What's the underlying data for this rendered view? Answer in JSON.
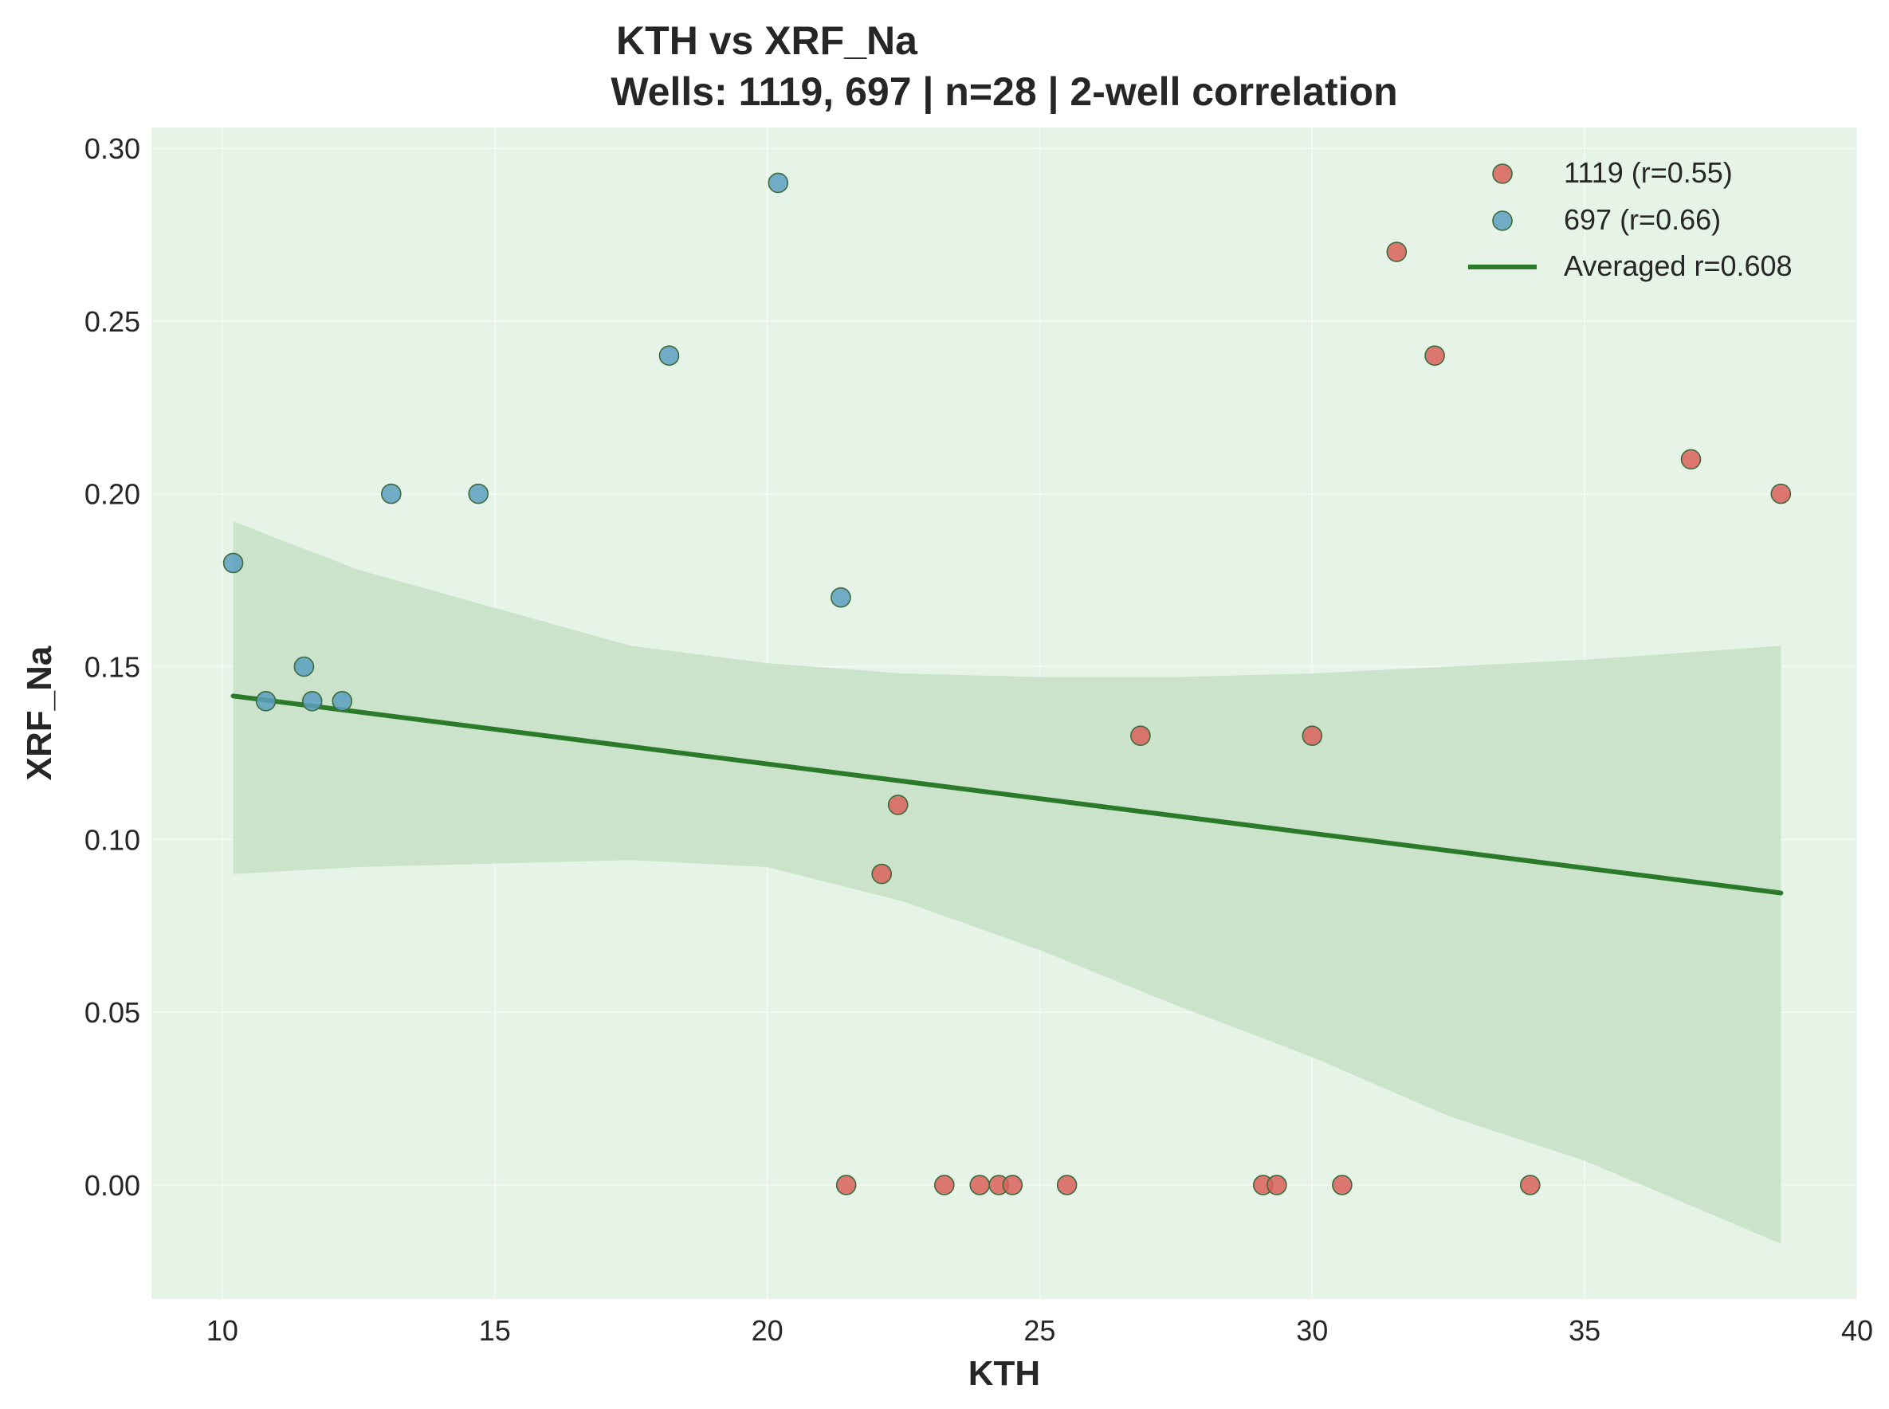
{
  "chart_data": {
    "type": "scatter",
    "title": "KTH vs XRF_Na",
    "subtitle": "Wells: 1119, 697 | n=28 | 2-well correlation",
    "xlabel": "KTH",
    "ylabel": "XRF_Na",
    "xlim": [
      8.7,
      40
    ],
    "ylim": [
      -0.033,
      0.306
    ],
    "x_ticks": [
      "10",
      "15",
      "20",
      "25",
      "30",
      "35",
      "40"
    ],
    "y_ticks": [
      "0.00",
      "0.05",
      "0.10",
      "0.15",
      "0.20",
      "0.25",
      "0.30"
    ],
    "grid": true,
    "legend_position": "top-right",
    "colors": {
      "plot_background": "#e6f4e8",
      "fit_line": "#2a7a2a",
      "confidence_band": "#c4dfc4",
      "marker_edge": "#3d6b3d"
    },
    "series": [
      {
        "name": "1119 (r=0.55)",
        "color": "#d9605a",
        "points": [
          [
            21.45,
            0.0
          ],
          [
            22.1,
            0.09
          ],
          [
            22.4,
            0.11
          ],
          [
            23.25,
            0.0
          ],
          [
            23.9,
            0.0
          ],
          [
            24.25,
            0.0
          ],
          [
            24.5,
            0.0
          ],
          [
            25.5,
            0.0
          ],
          [
            26.85,
            0.13
          ],
          [
            29.1,
            0.0
          ],
          [
            29.35,
            0.0
          ],
          [
            30.0,
            0.13
          ],
          [
            30.55,
            0.0
          ],
          [
            31.55,
            0.27
          ],
          [
            32.25,
            0.24
          ],
          [
            34.0,
            0.0
          ],
          [
            36.95,
            0.21
          ],
          [
            38.6,
            0.2
          ]
        ]
      },
      {
        "name": "697 (r=0.66)",
        "color": "#5a9fbf",
        "points": [
          [
            10.2,
            0.18
          ],
          [
            10.8,
            0.14
          ],
          [
            11.5,
            0.15
          ],
          [
            11.65,
            0.14
          ],
          [
            12.2,
            0.14
          ],
          [
            13.1,
            0.2
          ],
          [
            14.7,
            0.2
          ],
          [
            18.2,
            0.24
          ],
          [
            20.2,
            0.29
          ],
          [
            21.35,
            0.17
          ]
        ]
      }
    ],
    "fit_line": {
      "name": "Averaged r=0.608",
      "points": [
        [
          10.2,
          0.1415
        ],
        [
          38.6,
          0.0845
        ]
      ]
    },
    "confidence_band": {
      "x": [
        10.2,
        12.5,
        15,
        17.5,
        20,
        22.5,
        25,
        27.5,
        30,
        32.5,
        35,
        38.6
      ],
      "upper": [
        0.192,
        0.178,
        0.167,
        0.156,
        0.151,
        0.148,
        0.147,
        0.147,
        0.148,
        0.15,
        0.152,
        0.156
      ],
      "lower": [
        0.09,
        0.092,
        0.093,
        0.094,
        0.092,
        0.082,
        0.068,
        0.052,
        0.037,
        0.02,
        0.007,
        -0.017
      ]
    }
  }
}
